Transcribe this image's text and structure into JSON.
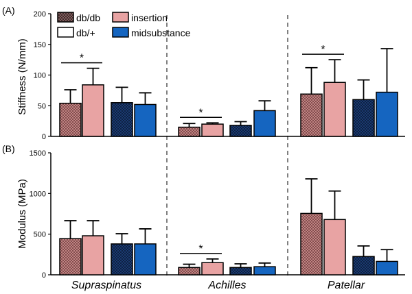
{
  "colors": {
    "db_insertion": "#c98b8b",
    "plus_insertion": "#e8a3a3",
    "db_midsubstance": "#1d3f7a",
    "plus_midsubstance": "#1565c0",
    "hatch": "#3a2020",
    "hatch_blue": "#0a1a33"
  },
  "legend": {
    "items": [
      {
        "key": "dbdb",
        "label": "db/db"
      },
      {
        "key": "dbplus",
        "label": "db/+"
      },
      {
        "key": "insertion",
        "label": "insertion"
      },
      {
        "key": "midsubstance",
        "label": "midsubstance"
      }
    ]
  },
  "chart_data": [
    {
      "type": "bar",
      "panel_label": "(A)",
      "ylabel": "Stiffness (N/mm)",
      "ylim": [
        0,
        200
      ],
      "yticks": [
        "0",
        "50",
        "100",
        "150",
        "200"
      ],
      "ytick_values": [
        0,
        50,
        100,
        150,
        200
      ],
      "categories": [
        "Supraspinatus",
        "Achilles",
        "Patellar"
      ],
      "series": [
        {
          "name": "db/db insertion",
          "values": [
            54,
            15,
            69
          ],
          "errors": [
            22,
            6,
            43
          ]
        },
        {
          "name": "db/+ insertion",
          "values": [
            84,
            20,
            88
          ],
          "errors": [
            27,
            2,
            37
          ]
        },
        {
          "name": "db/db midsubstance",
          "values": [
            55,
            18,
            60
          ],
          "errors": [
            25,
            6,
            32
          ]
        },
        {
          "name": "db/+ midsubstance",
          "values": [
            52,
            42,
            72
          ],
          "errors": [
            19,
            16,
            71
          ]
        }
      ],
      "significance": [
        {
          "category": "Supraspinatus",
          "between": [
            "db/db insertion",
            "db/+ insertion"
          ],
          "mark": "*"
        },
        {
          "category": "Achilles",
          "between": [
            "db/db insertion",
            "db/+ insertion"
          ],
          "mark": "*"
        },
        {
          "category": "Patellar",
          "between": [
            "db/db insertion",
            "db/+ insertion"
          ],
          "mark": "*"
        }
      ]
    },
    {
      "type": "bar",
      "panel_label": "(B)",
      "ylabel": "Modulus (MPa)",
      "ylim": [
        0,
        1500
      ],
      "yticks": [
        "0",
        "500",
        "1000",
        "1500"
      ],
      "ytick_values": [
        0,
        500,
        1000,
        1500
      ],
      "categories": [
        "Supraspinatus",
        "Achilles",
        "Patellar"
      ],
      "series": [
        {
          "name": "db/db insertion",
          "values": [
            445,
            90,
            755
          ],
          "errors": [
            220,
            40,
            425
          ]
        },
        {
          "name": "db/+ insertion",
          "values": [
            480,
            150,
            680
          ],
          "errors": [
            185,
            45,
            350
          ]
        },
        {
          "name": "db/db midsubstance",
          "values": [
            380,
            90,
            225
          ],
          "errors": [
            125,
            45,
            130
          ]
        },
        {
          "name": "db/+ midsubstance",
          "values": [
            380,
            100,
            165
          ],
          "errors": [
            185,
            45,
            145
          ]
        }
      ],
      "significance": [
        {
          "category": "Achilles",
          "between": [
            "db/db insertion",
            "db/+ insertion"
          ],
          "mark": "*"
        }
      ]
    }
  ]
}
